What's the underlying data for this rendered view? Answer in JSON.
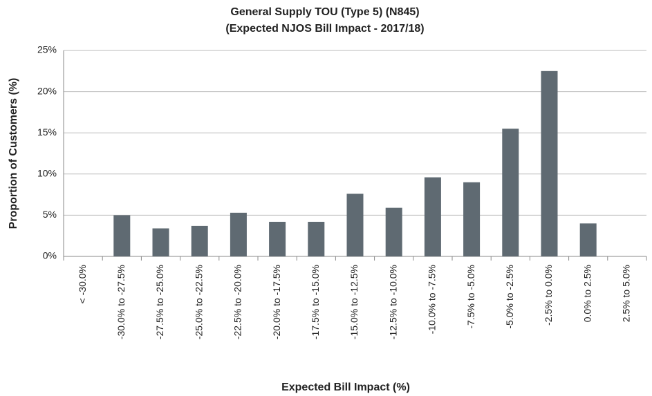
{
  "chart_data": {
    "type": "bar",
    "title": "General Supply TOU (Type 5) (N845)",
    "subtitle": "(Expected NJOS Bill Impact - 2017/18)",
    "x_label": "Expected Bill Impact (%)",
    "y_label": "Proportion of Customers (%)",
    "categories": [
      "< -30.0%",
      "-30.0% to -27.5%",
      "-27.5% to -25.0%",
      "-25.0% to -22.5%",
      "-22.5% to -20.0%",
      "-20.0% to -17.5%",
      "-17.5% to -15.0%",
      "-15.0% to -12.5%",
      "-12.5% to -10.0%",
      "-10.0% to -7.5%",
      "-7.5% to -5.0%",
      "-5.0% to -2.5%",
      "-2.5% to 0.0%",
      "0.0% to 2.5%",
      "2.5% to 5.0%"
    ],
    "values": [
      0,
      5.0,
      3.4,
      3.7,
      5.3,
      4.2,
      4.2,
      7.6,
      5.9,
      9.6,
      9.0,
      15.5,
      22.5,
      4.0,
      0
    ],
    "color": "#5f6a72",
    "ylim": [
      0,
      25
    ],
    "yticks": [
      {
        "value": 0,
        "label": "0%"
      },
      {
        "value": 5,
        "label": "5%"
      },
      {
        "value": 10,
        "label": "10%"
      },
      {
        "value": 15,
        "label": "15%"
      },
      {
        "value": 20,
        "label": "20%"
      },
      {
        "value": 25,
        "label": "25%"
      }
    ],
    "grid": true
  }
}
